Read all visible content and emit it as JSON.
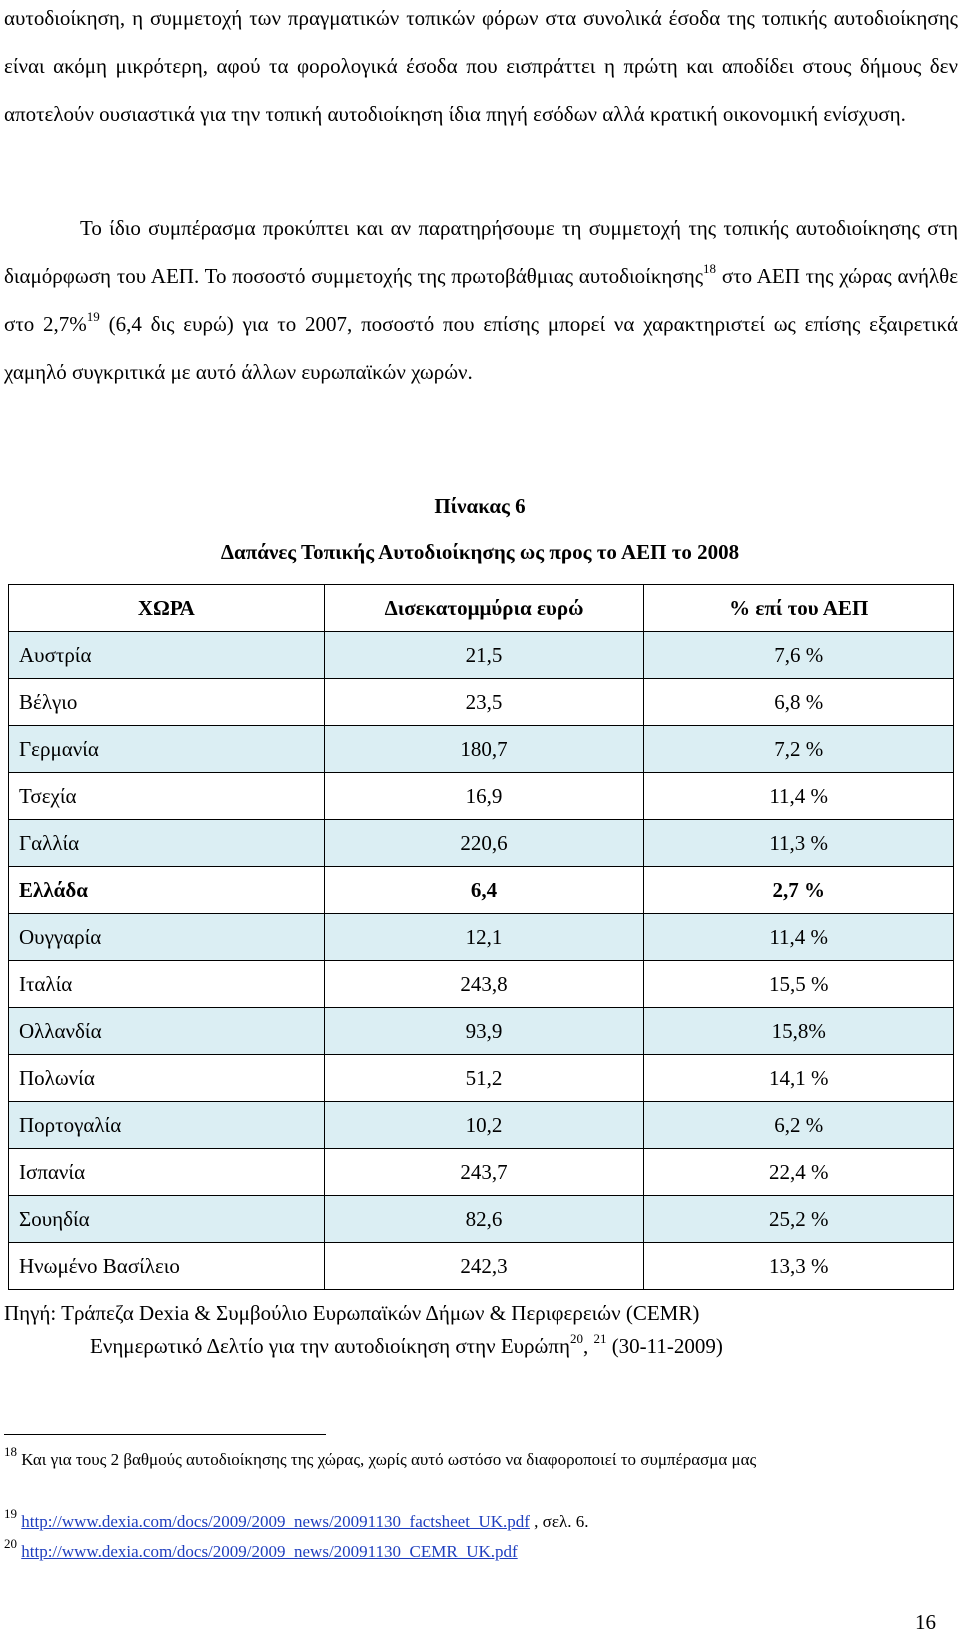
{
  "paragraph1": {
    "lines": [
      "αυτοδιοίκηση, η συμμετοχή των πραγματικών τοπικών φόρων στα συνολικά έσοδα της τοπικής αυτοδιοίκησης είναι ακόμη μικρότερη, αφού τα φορολογικά έσοδα που εισπράττει η πρώτη και αποδίδει στους δήμους δεν αποτελούν ουσιαστικά για την τοπική αυτοδιοίκηση ίδια πηγή εσόδων αλλά κρατική οικονομική ενίσχυση."
    ]
  },
  "paragraph2": {
    "part1": "Το ίδιο συμπέρασμα προκύπτει και αν παρατηρήσουμε τη συμμετοχή της τοπικής αυτοδιοίκησης στη διαμόρφωση του ΑΕΠ. Το ποσοστό συμμετοχής της πρωτοβάθμιας αυτοδιοίκησης",
    "sup1": "18",
    "part2": " στο ΑΕΠ της χώρας ανήλθε στο 2,7%",
    "sup2": "19",
    "part3": " (6,4 δις ευρώ) για το 2007, ποσοστό που επίσης μπορεί να χαρακτηριστεί ως επίσης εξαιρετικά χαμηλό συγκριτικά με αυτό άλλων ευρωπαϊκών χωρών."
  },
  "table": {
    "caption": "Πίνακας 6",
    "title": "Δαπάνες Τοπικής Αυτοδιοίκησης ως προς το ΑΕΠ το 2008",
    "headers": [
      "ΧΩΡΑ",
      "Δισεκατομμύρια ευρώ",
      "% επί του ΑΕΠ"
    ],
    "rows": [
      [
        "Αυστρία",
        "21,5",
        "7,6 %"
      ],
      [
        "Βέλγιο",
        "23,5",
        "6,8 %"
      ],
      [
        "Γερμανία",
        "180,7",
        "7,2 %"
      ],
      [
        "Τσεχία",
        "16,9",
        "11,4 %"
      ],
      [
        "Γαλλία",
        "220,6",
        "11,3 %"
      ],
      [
        "Ελλάδα",
        "6,4",
        "2,7 %"
      ],
      [
        "Ουγγαρία",
        "12,1",
        "11,4 %"
      ],
      [
        "Ιταλία",
        "243,8",
        "15,5 %"
      ],
      [
        "Ολλανδία",
        "93,9",
        "15,8%"
      ],
      [
        "Πολωνία",
        "51,2",
        "14,1 %"
      ],
      [
        "Πορτογαλία",
        "10,2",
        "6,2 %"
      ],
      [
        "Ισπανία",
        "243,7",
        "22,4 %"
      ],
      [
        "Σουηδία",
        "82,6",
        "25,2 %"
      ],
      [
        "Ηνωμένο Βασίλειο",
        "242,3",
        "13,3 %"
      ]
    ],
    "row_shade_color": "#dbeef3"
  },
  "source": {
    "line1": "Πηγή:  Τράπεζα Dexia & Συμβούλιο Ευρωπαϊκών Δήμων & Περιφερειών (CEMR)",
    "line2a": "Ενημερωτικό Δελτίο για την αυτοδιοίκηση στην Ευρώπη",
    "line2sup": "20",
    "line2b": ", ",
    "line2sup2": "21",
    "line2c": " (30-11-2009)"
  },
  "footnotes": {
    "fn18_num": "18",
    "fn18_text": " Και για τους 2 βαθμούς αυτοδιοίκησης της χώρας, χωρίς αυτό ωστόσο να διαφοροποιεί το συμπέρασμα μας",
    "fn19_num": "19",
    "fn19_link": "http://www.dexia.com/docs/2009/2009_news/20091130_factsheet_UK.pdf",
    "fn19_after": " ,  σελ. 6.",
    "fn20_num": "20",
    "fn20_link": "http://www.dexia.com/docs/2009/2009_news/20091130_CEMR_UK.pdf"
  },
  "page_number": "16"
}
